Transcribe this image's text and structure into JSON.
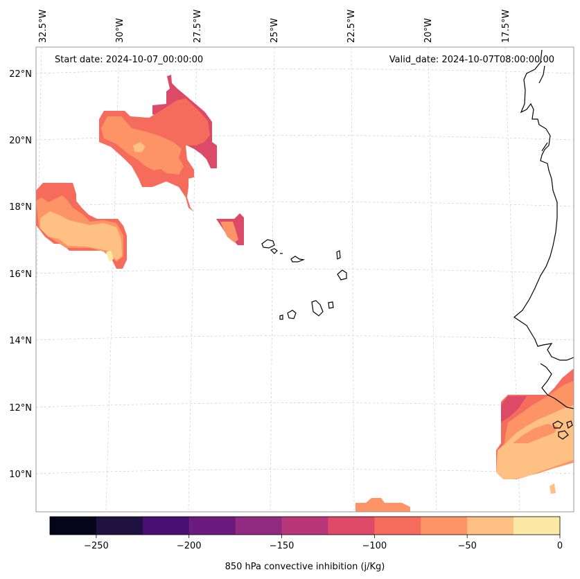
{
  "map": {
    "start_date_label": "Start date: 2024-10-07_00:00:00",
    "valid_date_label": "Valid_date: 2024-10-07T08:00:00.00",
    "lon_labels": [
      "32.5°W",
      "30°W",
      "27.5°W",
      "25°W",
      "22.5°W",
      "20°W",
      "17.5°W"
    ],
    "lat_labels": [
      "22°N",
      "20°N",
      "18°N",
      "16°N",
      "14°N",
      "12°N",
      "10°N"
    ],
    "gridlines": true,
    "coastline_color": "#000000"
  },
  "colorbar": {
    "label": "850 hPa convective inhibition (j/Kg)",
    "ticks": [
      "−250",
      "−200",
      "−150",
      "−100",
      "−50",
      "0"
    ],
    "levels": [
      -275,
      -250,
      -225,
      -200,
      -175,
      -150,
      -125,
      -100,
      -75,
      -50,
      -25,
      0
    ],
    "colors": [
      "#05051a",
      "#1f1140",
      "#4a0f72",
      "#6b1a7d",
      "#912b81",
      "#b73779",
      "#dd4a68",
      "#f56b5c",
      "#fc9465",
      "#fec083",
      "#fde9a6"
    ]
  },
  "fields": {
    "colors": {
      "dark_pink": "#dd4a68",
      "coral": "#f56b5c",
      "salmon": "#fc9465",
      "peach": "#fec083",
      "pale_yellow": "#fde9a6"
    }
  }
}
